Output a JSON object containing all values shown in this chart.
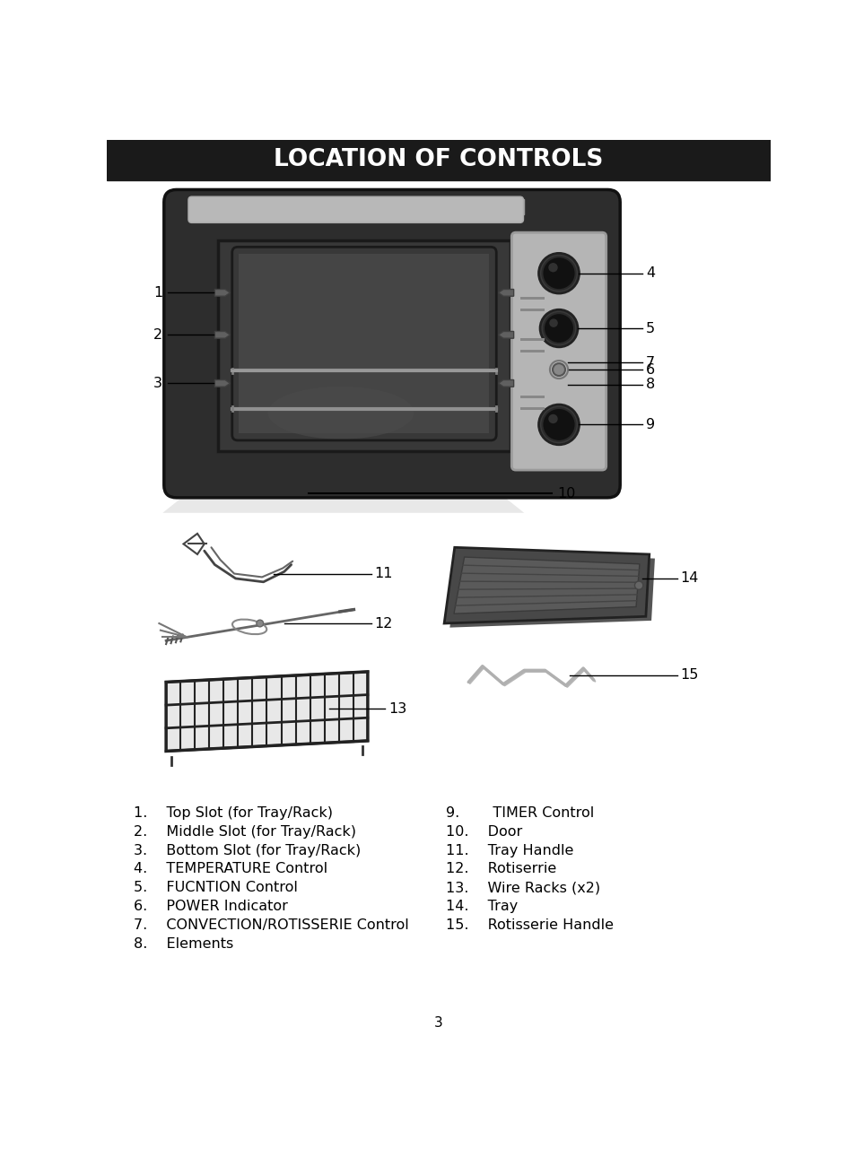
{
  "title": "LOCATION OF CONTROLS",
  "title_bg": "#1a1a1a",
  "title_fg": "#ffffff",
  "bg_color": "#ffffff",
  "page_number": "3",
  "left_labels": [
    "1.  Top Slot (for Tray/Rack)",
    "2.  Middle Slot (for Tray/Rack)",
    "3.  Bottom Slot (for Tray/Rack)",
    "4.  TEMPERATURE Control",
    "5.  FUCNTION Control",
    "6.  POWER Indicator",
    "7.  CONVECTION/ROTISSERIE Control",
    "8.  Elements"
  ],
  "right_labels": [
    "9.   TIMER Control",
    "10.  Door",
    "11.  Tray Handle",
    "12.  Rotiserrie",
    "13.  Wire Racks (x2)",
    "14.  Tray",
    "15.  Rotisserie Handle"
  ]
}
